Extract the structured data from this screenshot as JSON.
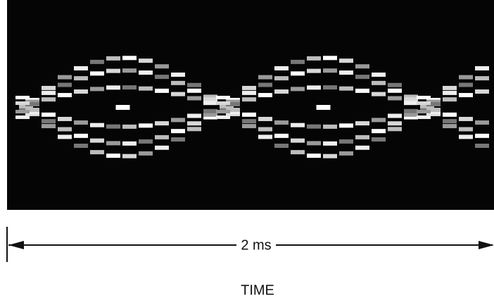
{
  "span_label": "2 ms",
  "axis_label": "TIME"
}
